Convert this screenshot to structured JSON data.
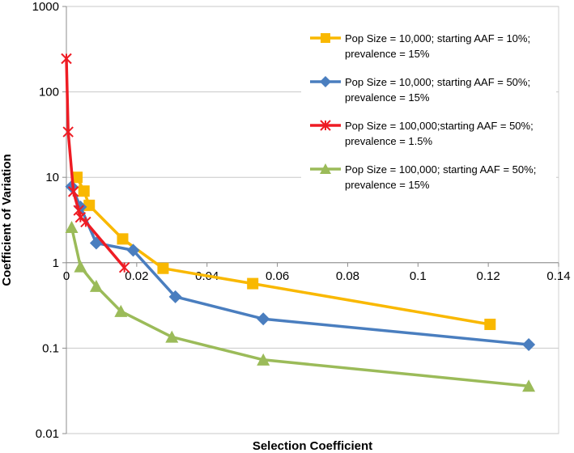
{
  "chart_data": {
    "type": "line",
    "title": "",
    "xlabel": "Selection Coefficient",
    "ylabel": "Coefficient of Variation",
    "x_scale": "linear",
    "y_scale": "log",
    "xlim": [
      0,
      0.14
    ],
    "ylim": [
      0.01,
      1000
    ],
    "x_ticks": [
      0,
      0.02,
      0.04,
      0.06,
      0.08,
      0.1,
      0.12,
      0.14
    ],
    "x_tick_labels": [
      "0",
      "0.02",
      "0.04",
      "0.06",
      "0.08",
      "0.1",
      "0.12",
      "0.14"
    ],
    "y_ticks": [
      0.01,
      0.1,
      1,
      10,
      100,
      1000
    ],
    "y_tick_labels": [
      "0.01",
      "0.1",
      "1",
      "10",
      "100",
      "1000"
    ],
    "x_axis_crosses_y_at": 1,
    "legend_position": "top-right",
    "series": [
      {
        "name": "Pop Size = 10,000; starting AAF = 10%; prevalence = 15%",
        "legend_lines": [
          "Pop Size = 10,000; starting AAF = 10%;",
          "prevalence = 15%"
        ],
        "color": "#f9b800",
        "marker": "square",
        "x": [
          0.003,
          0.005,
          0.0065,
          0.016,
          0.0275,
          0.053,
          0.1205
        ],
        "y": [
          10,
          6.9,
          4.7,
          1.9,
          0.86,
          0.57,
          0.19
        ]
      },
      {
        "name": "Pop Size = 10,000; starting AAF = 50%; prevalence = 15%",
        "legend_lines": [
          "Pop Size = 10,000; starting AAF = 50%;",
          "prevalence = 15%"
        ],
        "color": "#4a7ebf",
        "marker": "diamond",
        "x": [
          0.0015,
          0.004,
          0.0085,
          0.019,
          0.031,
          0.056,
          0.1315
        ],
        "y": [
          7.8,
          4.5,
          1.7,
          1.4,
          0.4,
          0.22,
          0.11
        ]
      },
      {
        "name": "Pop Size = 100,000;starting AAF = 50%; prevalence = 1.5%",
        "legend_lines": [
          "Pop Size = 100,000;starting AAF = 50%;",
          "prevalence = 1.5%"
        ],
        "color": "#ee1c24",
        "marker": "star",
        "x": [
          0,
          0.0005,
          0.002,
          0.0035,
          0.004,
          0.0055,
          0.0165
        ],
        "y": [
          245,
          34,
          6.8,
          4.1,
          3.4,
          3.0,
          0.88
        ]
      },
      {
        "name": "Pop Size = 100,000; starting AAF = 50%; prevalence = 15%",
        "legend_lines": [
          "Pop Size = 100,000; starting AAF = 50%;",
          "prevalence = 15%"
        ],
        "color": "#9bbb59",
        "marker": "triangle",
        "x": [
          0.0015,
          0.004,
          0.0085,
          0.0155,
          0.03,
          0.056,
          0.1315
        ],
        "y": [
          2.6,
          0.9,
          0.53,
          0.27,
          0.135,
          0.073,
          0.036
        ]
      }
    ]
  }
}
